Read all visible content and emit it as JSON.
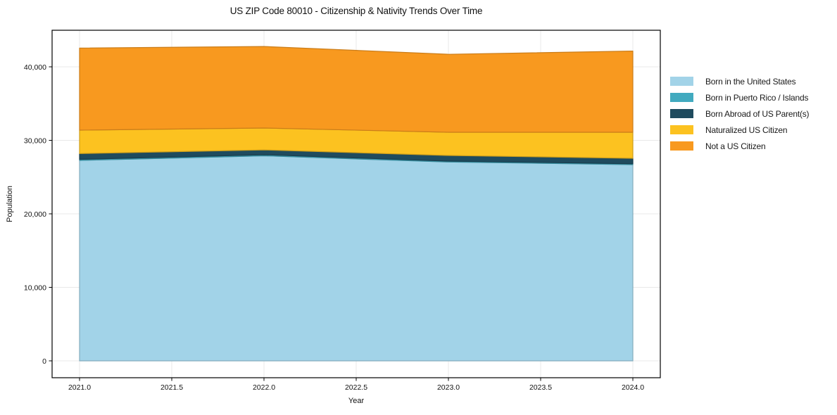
{
  "title": "US ZIP Code 80010 - Citizenship & Nativity Trends Over Time",
  "chart_data": {
    "type": "area",
    "stacked": true,
    "title": "US ZIP Code 80010 - Citizenship & Nativity Trends Over Time",
    "xlabel": "Year",
    "ylabel": "Population",
    "x": [
      2021.0,
      2022.0,
      2023.0,
      2024.0
    ],
    "series": [
      {
        "name": "Born in the United States",
        "color": "#a2d3e8",
        "values": [
          27270,
          27890,
          27050,
          26700
        ]
      },
      {
        "name": "Born in Puerto Rico / Islands",
        "color": "#41aabf",
        "values": [
          150,
          150,
          130,
          110
        ]
      },
      {
        "name": "Born Abroad of US Parent(s)",
        "color": "#1f4b5e",
        "values": [
          780,
          660,
          760,
          750
        ]
      },
      {
        "name": "Naturalized US Citizen",
        "color": "#fcc220",
        "values": [
          3190,
          2970,
          3160,
          3540
        ]
      },
      {
        "name": "Not a US Citizen",
        "color": "#f8991f",
        "values": [
          11160,
          11100,
          10600,
          11040
        ]
      }
    ],
    "stack_totals": [
      42550,
      42770,
      41700,
      42140
    ],
    "x_ticks": [
      2021.0,
      2021.5,
      2022.0,
      2022.5,
      2023.0,
      2023.5,
      2024.0
    ],
    "x_tick_labels": [
      "2021.0",
      "2021.5",
      "2022.0",
      "2022.5",
      "2023.0",
      "2023.5",
      "2024.0"
    ],
    "y_ticks": [
      0,
      10000,
      20000,
      30000,
      40000
    ],
    "y_tick_labels": [
      "0",
      "10,000",
      "20,000",
      "30,000",
      "40,000"
    ],
    "ylim": [
      0,
      45000
    ],
    "xlim": [
      2020.85,
      2024.15
    ],
    "grid": true,
    "grid_color": "#e8e8e8",
    "frame_color": "#000000",
    "legend_position": "right-outside"
  }
}
